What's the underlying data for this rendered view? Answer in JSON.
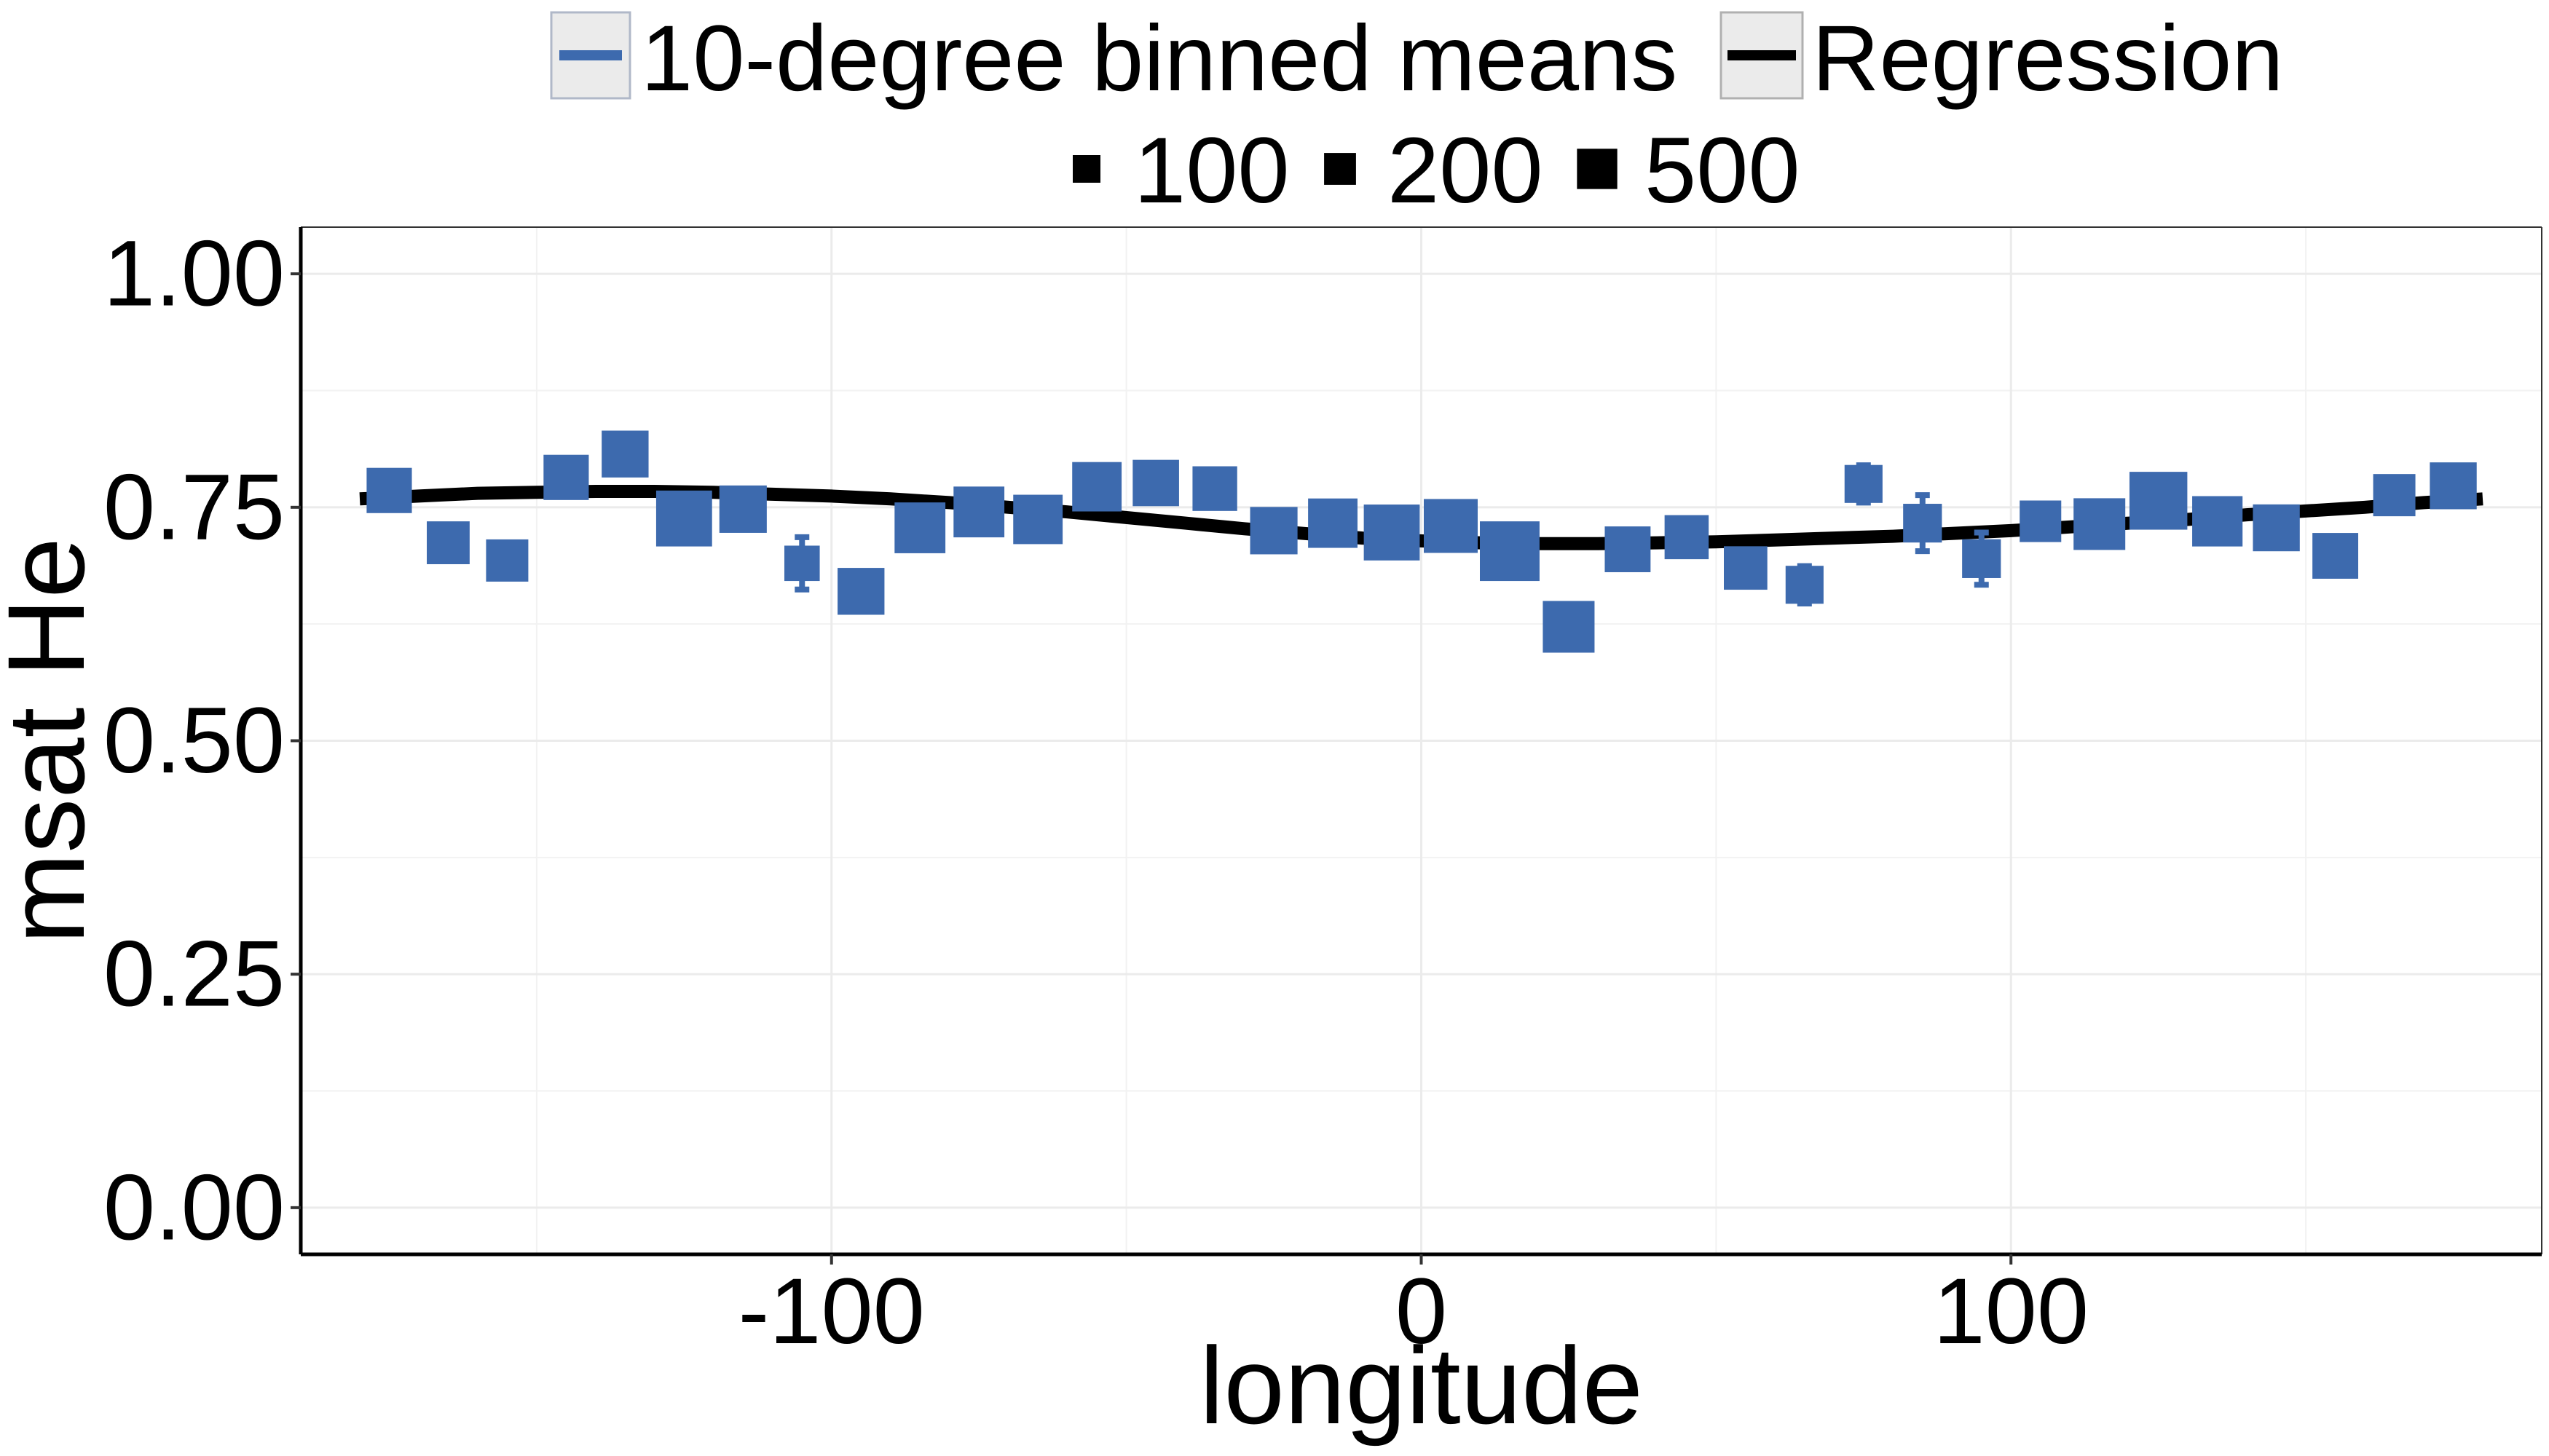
{
  "chart_data": {
    "type": "scatter",
    "xlabel": "longitude",
    "ylabel": "msat He",
    "xlim": [
      -190,
      190
    ],
    "ylim": [
      -0.05,
      1.05
    ],
    "x_ticks": [
      -100,
      0,
      100
    ],
    "x_tick_labels": [
      "-100",
      "0",
      "100"
    ],
    "y_ticks": [
      0.0,
      0.25,
      0.5,
      0.75,
      1.0
    ],
    "y_tick_labels": [
      "0.00",
      "0.25",
      "0.50",
      "0.75",
      "1.00"
    ],
    "grid": true,
    "legend_position": "top",
    "legend": {
      "series": [
        {
          "label": "10-degree binned means",
          "type": "point",
          "color": "#3D6AAE"
        },
        {
          "label": "Regression",
          "type": "line",
          "color": "#000000"
        }
      ],
      "size_entries": [
        {
          "label": "100",
          "n": 100
        },
        {
          "label": "200",
          "n": 200
        },
        {
          "label": "500",
          "n": 500
        }
      ]
    },
    "series": [
      {
        "name": "10-degree binned means",
        "color": "#3D6AAE",
        "points": [
          {
            "x": -175,
            "y": 0.768,
            "n": 220,
            "err": 0.008
          },
          {
            "x": -165,
            "y": 0.712,
            "n": 180,
            "err": 0.012
          },
          {
            "x": -155,
            "y": 0.693,
            "n": 170,
            "err": 0.012
          },
          {
            "x": -145,
            "y": 0.782,
            "n": 220,
            "err": 0.008
          },
          {
            "x": -135,
            "y": 0.807,
            "n": 250,
            "err": 0.008
          },
          {
            "x": -125,
            "y": 0.738,
            "n": 450,
            "err": 0.008
          },
          {
            "x": -115,
            "y": 0.748,
            "n": 260,
            "err": 0.008
          },
          {
            "x": -105,
            "y": 0.69,
            "n": 80,
            "err": 0.028
          },
          {
            "x": -95,
            "y": 0.66,
            "n": 250,
            "err": 0.008
          },
          {
            "x": -85,
            "y": 0.728,
            "n": 330,
            "err": 0.008
          },
          {
            "x": -75,
            "y": 0.745,
            "n": 330,
            "err": 0.008
          },
          {
            "x": -65,
            "y": 0.737,
            "n": 300,
            "err": 0.008
          },
          {
            "x": -55,
            "y": 0.772,
            "n": 300,
            "err": 0.008
          },
          {
            "x": -45,
            "y": 0.776,
            "n": 240,
            "err": 0.008
          },
          {
            "x": -35,
            "y": 0.77,
            "n": 210,
            "err": 0.008
          },
          {
            "x": -25,
            "y": 0.725,
            "n": 260,
            "err": 0.008
          },
          {
            "x": -15,
            "y": 0.733,
            "n": 300,
            "err": 0.008
          },
          {
            "x": -5,
            "y": 0.723,
            "n": 450,
            "err": 0.008
          },
          {
            "x": 5,
            "y": 0.73,
            "n": 400,
            "err": 0.008
          },
          {
            "x": 15,
            "y": 0.703,
            "n": 550,
            "err": 0.008
          },
          {
            "x": 25,
            "y": 0.622,
            "n": 350,
            "err": 0.008
          },
          {
            "x": 35,
            "y": 0.705,
            "n": 230,
            "err": 0.008
          },
          {
            "x": 45,
            "y": 0.718,
            "n": 200,
            "err": 0.008
          },
          {
            "x": 55,
            "y": 0.685,
            "n": 190,
            "err": 0.008
          },
          {
            "x": 65,
            "y": 0.667,
            "n": 110,
            "err": 0.02
          },
          {
            "x": 75,
            "y": 0.775,
            "n": 110,
            "err": 0.02
          },
          {
            "x": 85,
            "y": 0.733,
            "n": 120,
            "err": 0.03
          },
          {
            "x": 95,
            "y": 0.695,
            "n": 120,
            "err": 0.028
          },
          {
            "x": 105,
            "y": 0.735,
            "n": 160,
            "err": 0.01
          },
          {
            "x": 115,
            "y": 0.732,
            "n": 350,
            "err": 0.008
          },
          {
            "x": 125,
            "y": 0.757,
            "n": 500,
            "err": 0.008
          },
          {
            "x": 135,
            "y": 0.735,
            "n": 320,
            "err": 0.008
          },
          {
            "x": 145,
            "y": 0.728,
            "n": 250,
            "err": 0.008
          },
          {
            "x": 155,
            "y": 0.698,
            "n": 230,
            "err": 0.008
          },
          {
            "x": 165,
            "y": 0.763,
            "n": 170,
            "err": 0.008
          },
          {
            "x": 175,
            "y": 0.773,
            "n": 250,
            "err": 0.008
          }
        ]
      },
      {
        "name": "Regression",
        "type": "line",
        "color": "#000000",
        "x": [
          -180,
          -170,
          -160,
          -150,
          -140,
          -130,
          -120,
          -110,
          -100,
          -90,
          -80,
          -70,
          -60,
          -50,
          -40,
          -30,
          -20,
          -10,
          0,
          10,
          20,
          30,
          40,
          50,
          60,
          70,
          80,
          90,
          100,
          110,
          120,
          130,
          140,
          150,
          160,
          170,
          180
        ],
        "y": [
          0.759,
          0.762,
          0.765,
          0.766,
          0.767,
          0.767,
          0.766,
          0.764,
          0.762,
          0.759,
          0.755,
          0.75,
          0.745,
          0.739,
          0.733,
          0.727,
          0.722,
          0.717,
          0.714,
          0.712,
          0.711,
          0.711,
          0.712,
          0.713,
          0.715,
          0.717,
          0.719,
          0.722,
          0.725,
          0.729,
          0.733,
          0.737,
          0.742,
          0.746,
          0.75,
          0.755,
          0.759
        ]
      }
    ]
  }
}
